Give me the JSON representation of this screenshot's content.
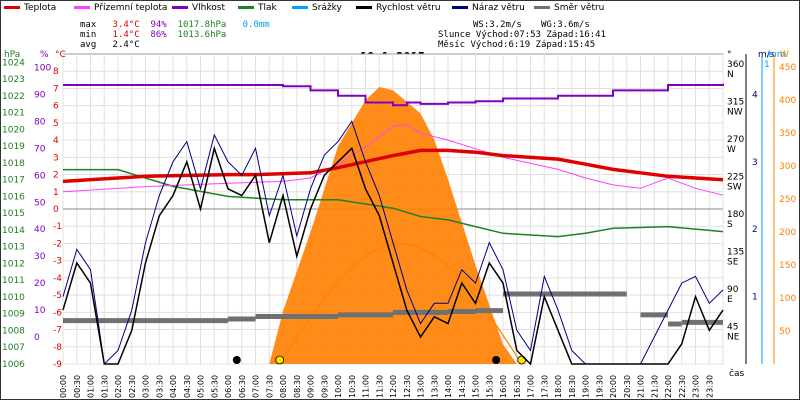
{
  "colors": {
    "teplota": "#e00000",
    "pocitova": "#ff40ff",
    "vlhkost": "#8000c0",
    "tlak": "#208020",
    "srazky": "#00a0ff",
    "rychlost": "#000000",
    "naraz": "#000080",
    "smer": "#707070",
    "solar": "#ff8000",
    "sun": "#ffe000",
    "grid": "#e0e0e0"
  },
  "legend": [
    {
      "label": "Teplota",
      "color": "#e00000"
    },
    {
      "label": "Přízemní teplota",
      "color": "#ff40ff"
    },
    {
      "label": "Vlhkost",
      "color": "#8000c0"
    },
    {
      "label": "Tlak",
      "color": "#208020"
    },
    {
      "label": "Srážky",
      "color": "#00a0ff"
    },
    {
      "label": "Rychlost větru",
      "color": "#000000"
    },
    {
      "label": "Náraz větru",
      "color": "#000080"
    },
    {
      "label": "Směr větru",
      "color": "#707070"
    }
  ],
  "stats": {
    "max_label": "max",
    "max_temp": "3.4°C",
    "max_hum": "94%",
    "max_press": "1017.8hPa",
    "rain": "0.0mm",
    "min_label": "min",
    "min_temp": "1.4°C",
    "min_hum": "86%",
    "min_press": "1013.6hPa",
    "avg_label": "avg",
    "avg_temp": "2.4°C",
    "ws": "WS:3.2m/s",
    "wg": "WG:3.6m/s",
    "sun_line": "Slunce Východ:07:53  Západ:16:41",
    "moon_line": "Měsíc  Východ:6:19  Západ:15:45"
  },
  "chart_data": {
    "type": "line",
    "title": "19.1.2015",
    "xlabel": "čas",
    "x_ticks": [
      "00:00",
      "00:30",
      "01:00",
      "01:30",
      "02:00",
      "02:30",
      "03:00",
      "03:30",
      "04:00",
      "04:30",
      "05:00",
      "05:30",
      "06:00",
      "06:30",
      "07:00",
      "07:30",
      "08:00",
      "08:30",
      "09:00",
      "09:30",
      "10:00",
      "10:30",
      "11:00",
      "11:30",
      "12:00",
      "12:30",
      "13:00",
      "13:30",
      "14:00",
      "14:30",
      "15:00",
      "15:30",
      "16:00",
      "16:30",
      "17:00",
      "17:30",
      "18:00",
      "18:30",
      "19:00",
      "19:30",
      "20:00",
      "20:30",
      "21:00",
      "21:30",
      "22:00",
      "22:30",
      "23:00",
      "23:30"
    ],
    "axes": {
      "hpa": {
        "label": "hPa",
        "ticks": [
          "1024",
          "1023",
          "1022",
          "1021",
          "1020",
          "1019",
          "1018",
          "1017",
          "1016",
          "1015",
          "1014",
          "1013",
          "1012",
          "1011",
          "1010",
          "1009",
          "1008",
          "1007",
          "1006"
        ]
      },
      "pct": {
        "label": "%",
        "ticks": [
          "100",
          "90",
          "80",
          "70",
          "60",
          "50",
          "40",
          "30",
          "20",
          "10",
          "0"
        ]
      },
      "temp": {
        "label": "°C",
        "ticks": [
          "8",
          "7",
          "6",
          "5",
          "4",
          "3",
          "2",
          "1",
          "0",
          "-1",
          "-2",
          "-3",
          "-4",
          "-5",
          "-6",
          "-7",
          "-8",
          "-9"
        ]
      },
      "dir": {
        "label": "°",
        "ticks": [
          "360",
          "315",
          "270",
          "225",
          "180",
          "135",
          "90",
          "45"
        ],
        "letters": [
          "N",
          "NW",
          "W",
          "SW",
          "S",
          "SE",
          "E",
          "NE"
        ]
      },
      "ms": {
        "label": "m/s",
        "ticks": [
          "4",
          "3",
          "2",
          "1"
        ]
      },
      "mm": {
        "label": "mm",
        "ticks": [
          "1"
        ]
      },
      "w": {
        "label": "W",
        "ticks": [
          "450",
          "400",
          "350",
          "300",
          "250",
          "200",
          "150",
          "100",
          "50"
        ]
      }
    },
    "series": [
      {
        "name": "Teplota",
        "unit": "°C",
        "color": "#e00000",
        "t": [
          0,
          3,
          6,
          7,
          9,
          10,
          12,
          13,
          14,
          15,
          16,
          18,
          19,
          20,
          21,
          22,
          24
        ],
        "values": [
          1.6,
          1.9,
          2.0,
          2.0,
          2.1,
          2.4,
          3.1,
          3.4,
          3.4,
          3.3,
          3.1,
          2.9,
          2.6,
          2.3,
          2.1,
          1.9,
          1.7
        ]
      },
      {
        "name": "Přízemní teplota",
        "unit": "°C",
        "color": "#ff40ff",
        "t": [
          0,
          3,
          6,
          8,
          9,
          10,
          11,
          11.5,
          12,
          12.5,
          13,
          14,
          15,
          16,
          18,
          19,
          20,
          21,
          22,
          23,
          24
        ],
        "values": [
          1.0,
          1.3,
          1.5,
          1.6,
          1.8,
          2.6,
          3.6,
          4.2,
          4.8,
          4.9,
          4.4,
          4.0,
          3.5,
          3.0,
          2.3,
          1.8,
          1.4,
          1.2,
          1.8,
          1.2,
          0.8
        ]
      },
      {
        "name": "Vlhkost",
        "unit": "%",
        "color": "#8000c0",
        "t": [
          0,
          6,
          8,
          9,
          10,
          11,
          12,
          12.5,
          13,
          14,
          15,
          16,
          18,
          20,
          22,
          24
        ],
        "values": [
          93.5,
          93.5,
          93.0,
          91.5,
          89.5,
          87.0,
          86.0,
          87.0,
          86.5,
          87.0,
          87.5,
          88.5,
          89.5,
          91.5,
          93.5,
          94.0
        ]
      },
      {
        "name": "Tlak",
        "unit": "hPa",
        "color": "#208020",
        "t": [
          0,
          1,
          2,
          4,
          6,
          8,
          10,
          12,
          13,
          14,
          15,
          16,
          18,
          19,
          20,
          22,
          24
        ],
        "values": [
          1017.6,
          1017.6,
          1017.6,
          1016.6,
          1016.0,
          1015.8,
          1015.8,
          1015.3,
          1014.8,
          1014.6,
          1014.2,
          1013.8,
          1013.6,
          1013.8,
          1014.1,
          1014.2,
          1013.9
        ]
      },
      {
        "name": "Rychlost větru",
        "unit": "m/s",
        "color": "#000000",
        "t": [
          0,
          0.5,
          1,
          1.5,
          2,
          2.5,
          3,
          3.5,
          4,
          4.5,
          5,
          5.5,
          6,
          6.5,
          7,
          7.5,
          8,
          8.5,
          9,
          9.5,
          10,
          10.5,
          11,
          11.5,
          12,
          12.5,
          13,
          13.5,
          14,
          14.5,
          15,
          15.5,
          16,
          16.5,
          17,
          17.5,
          18,
          18.5,
          19,
          19.5,
          20,
          20.5,
          21,
          21.5,
          22,
          22.5,
          23,
          23.5,
          24
        ],
        "values": [
          0.8,
          1.5,
          1.2,
          0,
          0,
          0.5,
          1.5,
          2.2,
          2.5,
          3.0,
          2.3,
          3.2,
          2.6,
          2.5,
          2.8,
          1.8,
          2.5,
          1.6,
          2.3,
          2.8,
          3.0,
          3.2,
          2.6,
          2.2,
          1.5,
          0.8,
          0.4,
          0.7,
          0.6,
          1.2,
          0.9,
          1.5,
          1.2,
          0.2,
          0,
          1.0,
          0.5,
          0,
          0,
          0,
          0,
          0,
          0,
          0,
          0,
          0.3,
          1.0,
          0.5,
          0.8
        ]
      },
      {
        "name": "Náraz větru",
        "unit": "m/s",
        "color": "#000080",
        "t": [
          0,
          0.5,
          1,
          1.5,
          2,
          2.5,
          3,
          3.5,
          4,
          4.5,
          5,
          5.5,
          6,
          6.5,
          7,
          7.5,
          8,
          8.5,
          9,
          9.5,
          10,
          10.5,
          11,
          11.5,
          12,
          12.5,
          13,
          13.5,
          14,
          14.5,
          15,
          15.5,
          16,
          16.5,
          17,
          17.5,
          18,
          18.5,
          19,
          19.5,
          20,
          20.5,
          21,
          21.5,
          22,
          22.5,
          23,
          23.5,
          24
        ],
        "values": [
          1.0,
          1.7,
          1.4,
          0,
          0.2,
          0.8,
          1.8,
          2.5,
          3.0,
          3.3,
          2.6,
          3.4,
          3.0,
          2.8,
          3.2,
          2.2,
          2.8,
          1.9,
          2.6,
          3.1,
          3.3,
          3.6,
          3.0,
          2.5,
          1.8,
          1.1,
          0.6,
          0.9,
          0.9,
          1.4,
          1.2,
          1.8,
          1.4,
          0.5,
          0.2,
          1.3,
          0.8,
          0.2,
          0,
          0,
          0,
          0,
          0,
          0.4,
          0.8,
          1.2,
          1.3,
          0.9,
          1.1
        ]
      },
      {
        "name": "Směr větru",
        "unit": "°",
        "color": "#707070",
        "t": [
          0,
          2,
          4,
          5,
          6,
          7,
          8,
          10,
          12,
          14,
          15,
          16,
          18,
          20,
          20.5,
          21,
          22,
          22.5,
          24
        ],
        "values": [
          52,
          52,
          52,
          52,
          54,
          57,
          57,
          59,
          62,
          63,
          64,
          84,
          84,
          84,
          null,
          59,
          48,
          50,
          50
        ]
      },
      {
        "name": "Sluneční záření",
        "unit": "W",
        "color": "#ff8000",
        "t": [
          7.5,
          8,
          9,
          10,
          11,
          11.5,
          12,
          13,
          13.5,
          14,
          15,
          16,
          16.5
        ],
        "values": [
          0,
          80,
          200,
          330,
          400,
          420,
          415,
          380,
          340,
          280,
          150,
          30,
          0
        ]
      }
    ],
    "sun": {
      "rise": 7.88,
      "set": 16.68
    },
    "moon": {
      "rise": 6.32,
      "set": 15.75
    }
  }
}
